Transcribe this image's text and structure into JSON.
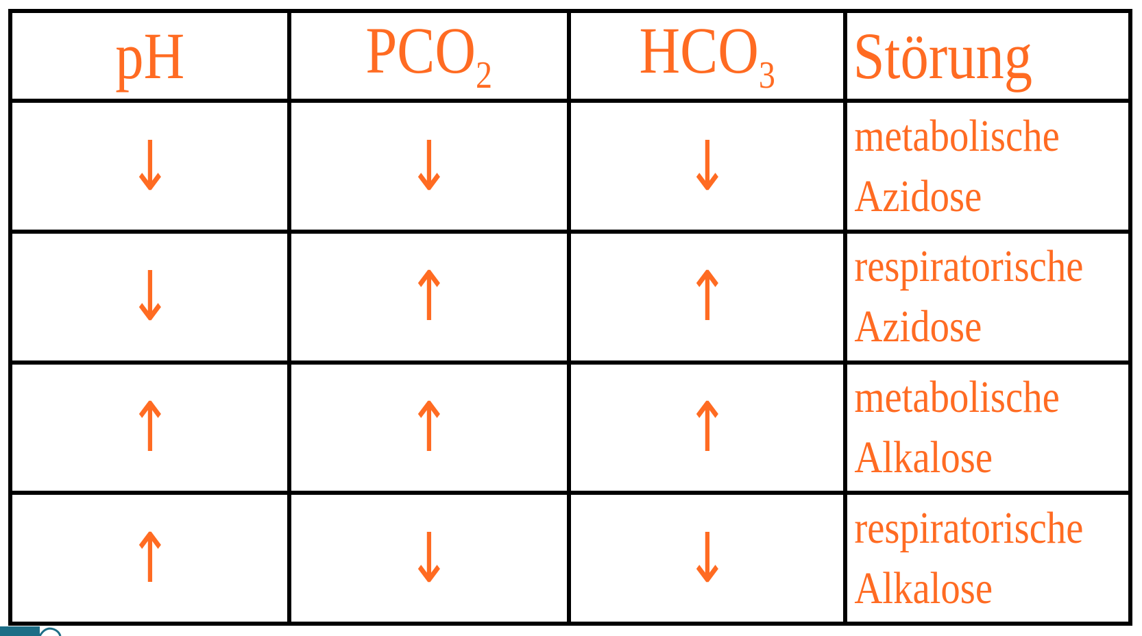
{
  "table": {
    "headers": {
      "ph": "pH",
      "pco2_main": "PCO",
      "pco2_sub": "2",
      "hco3_main": "HCO",
      "hco3_sub": "3",
      "disorder": "Störung"
    },
    "rows": [
      {
        "ph": "↓",
        "pco2": "↓",
        "hco3": "↓",
        "disorder_line1": "metabolische",
        "disorder_line2": "Azidose"
      },
      {
        "ph": "↓",
        "pco2": "↑",
        "hco3": "↑",
        "disorder_line1": "respiratorische",
        "disorder_line2": "Azidose"
      },
      {
        "ph": "↑",
        "pco2": "↑",
        "hco3": "↑",
        "disorder_line1": "metabolische",
        "disorder_line2": "Alkalose"
      },
      {
        "ph": "↑",
        "pco2": "↓",
        "hco3": "↓",
        "disorder_line1": "respiratorische",
        "disorder_line2": "Alkalose"
      }
    ]
  },
  "colors": {
    "text": "#ff6b22",
    "grid": "#000000",
    "corner_mark": "#1d6e86"
  }
}
